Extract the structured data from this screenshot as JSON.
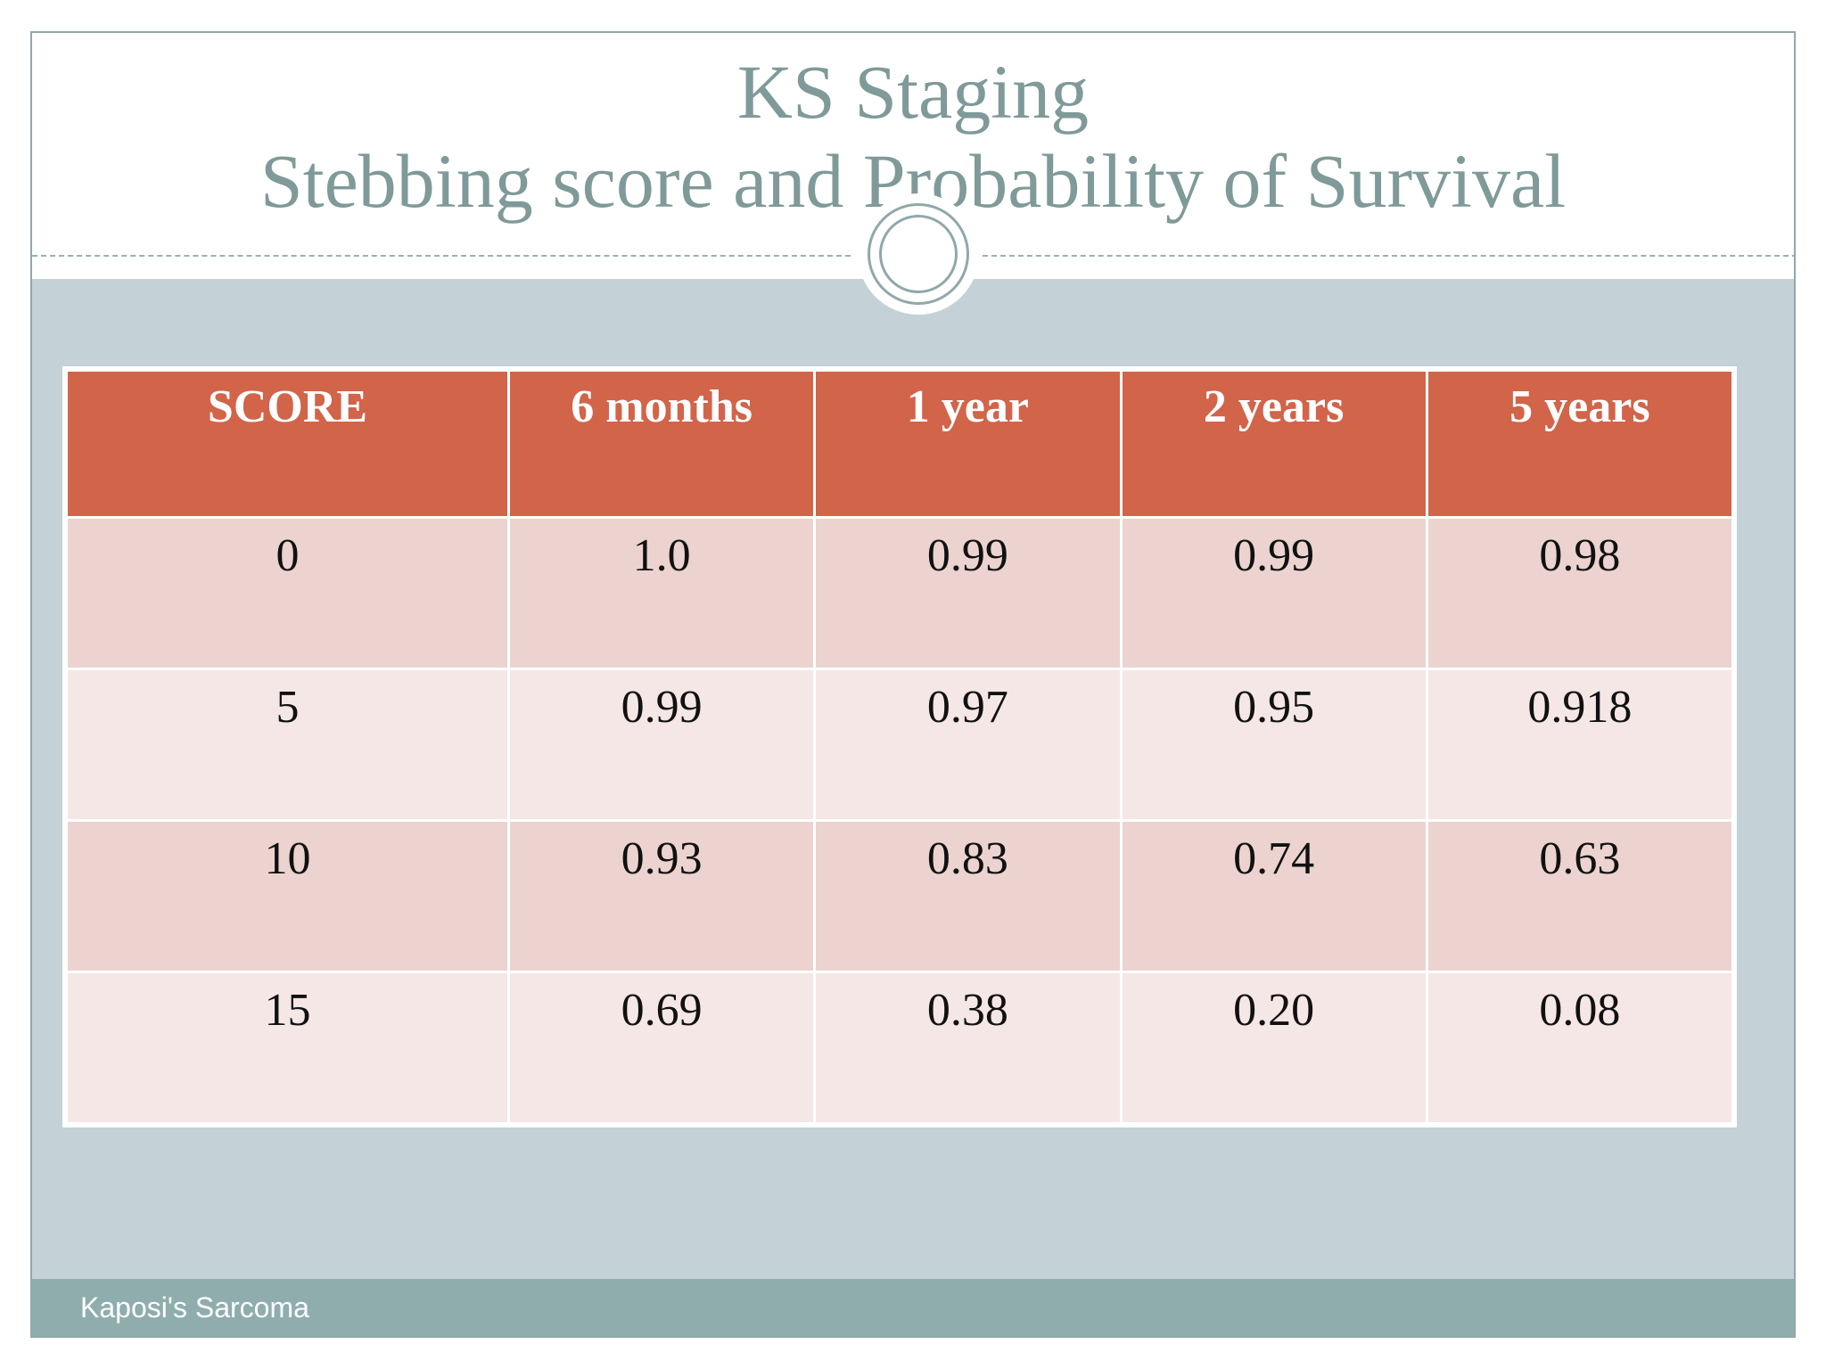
{
  "slide": {
    "title_line1": "KS Staging",
    "title_line2": "Stebbing score and Probability of Survival",
    "footer": "Kaposi's Sarcoma"
  },
  "table": {
    "headers": [
      "SCORE",
      "6 months",
      "1 year",
      "2 years",
      "5 years"
    ],
    "rows": [
      [
        "0",
        "1.0",
        "0.99",
        "0.99",
        "0.98"
      ],
      [
        "5",
        "0.99",
        "0.97",
        "0.95",
        "0.918"
      ],
      [
        "10",
        "0.93",
        "0.83",
        "0.74",
        "0.63"
      ],
      [
        "15",
        "0.69",
        "0.38",
        "0.20",
        "0.08"
      ]
    ]
  },
  "colors": {
    "title": "#7f9a98",
    "header_fill": "#d2644a",
    "row_dark": "#ecd3d0",
    "row_light": "#f5e7e6",
    "body_background": "#c4d2d7",
    "footer_bar": "#8fadad"
  }
}
